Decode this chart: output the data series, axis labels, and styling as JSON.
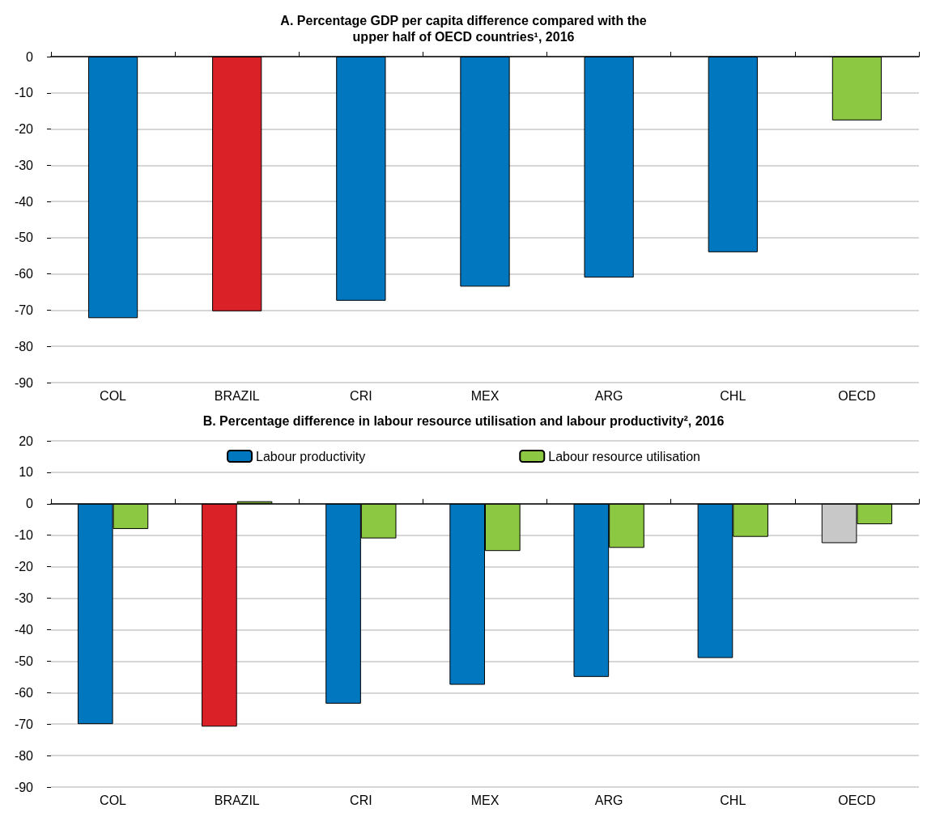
{
  "chart_data": [
    {
      "type": "bar",
      "title": "A. Percentage GDP per capita difference compared with the\nupper half of OECD countries¹, 2016",
      "categories": [
        "COL",
        "BRAZIL",
        "CRI",
        "MEX",
        "ARG",
        "CHL",
        "OECD"
      ],
      "series": [
        {
          "color": "#0077bf",
          "colors": [
            "#0077bf",
            "#da2128",
            "#0077bf",
            "#0077bf",
            "#0077bf",
            "#0077bf",
            "#8cc841"
          ],
          "values": [
            -72.2,
            -70.3,
            -67.4,
            -63.5,
            -61,
            -54,
            -17.6
          ]
        }
      ],
      "ylim": [
        -90,
        0
      ],
      "yticks": [
        -90,
        -80,
        -70,
        -60,
        -50,
        -40,
        -30,
        -20,
        -10,
        0
      ],
      "grid": "y",
      "legend": false
    },
    {
      "type": "bar",
      "title": "B. Percentage difference in labour resource utilisation and labour productivity², 2016",
      "categories": [
        "COL",
        "BRAZIL",
        "CRI",
        "MEX",
        "ARG",
        "CHL",
        "OECD"
      ],
      "series": [
        {
          "name": "Labour productivity",
          "color": "#0077bf",
          "colors": [
            "#0077bf",
            "#da2128",
            "#0077bf",
            "#0077bf",
            "#0077bf",
            "#0077bf",
            "#c8c8c8"
          ],
          "values": [
            -70,
            -70.8,
            -63.5,
            -57.5,
            -55,
            -49,
            -12.5
          ]
        },
        {
          "name": "Labour resource utilisation",
          "color": "#8cc841",
          "values": [
            -8,
            0.8,
            -11,
            -15,
            -14,
            -10.5,
            -6.5
          ]
        }
      ],
      "ylim": [
        -90,
        20
      ],
      "yticks": [
        -90,
        -80,
        -70,
        -60,
        -50,
        -40,
        -30,
        -20,
        -10,
        0,
        10,
        20
      ],
      "grid": "y",
      "legend": "top"
    }
  ]
}
